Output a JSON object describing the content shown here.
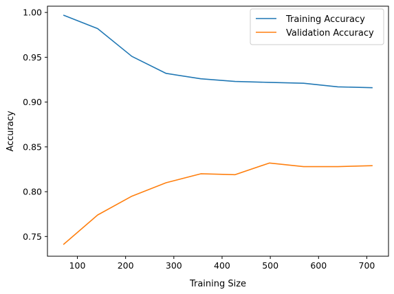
{
  "chart_data": {
    "type": "line",
    "xlabel": "Training Size",
    "ylabel": "Accuracy",
    "xlim": [
      38,
      745
    ],
    "ylim": [
      0.728,
      1.007
    ],
    "xticks": [
      100,
      200,
      300,
      400,
      500,
      600,
      700
    ],
    "yticks": [
      0.75,
      0.8,
      0.85,
      0.9,
      0.95,
      1.0
    ],
    "ytick_labels": [
      "0.75",
      "0.80",
      "0.85",
      "0.90",
      "0.95",
      "1.00"
    ],
    "legend_position": "top-right",
    "grid": false,
    "x": [
      71,
      142,
      213,
      284,
      356,
      427,
      498,
      569,
      640,
      712
    ],
    "series": [
      {
        "name": "Training Accuracy",
        "color": "#1f77b4",
        "values": [
          0.997,
          0.982,
          0.951,
          0.932,
          0.926,
          0.923,
          0.922,
          0.921,
          0.917,
          0.916
        ]
      },
      {
        "name": "Validation Accuracy",
        "color": "#ff7f0e",
        "values": [
          0.741,
          0.774,
          0.795,
          0.81,
          0.82,
          0.819,
          0.832,
          0.828,
          0.828,
          0.829
        ]
      }
    ]
  }
}
